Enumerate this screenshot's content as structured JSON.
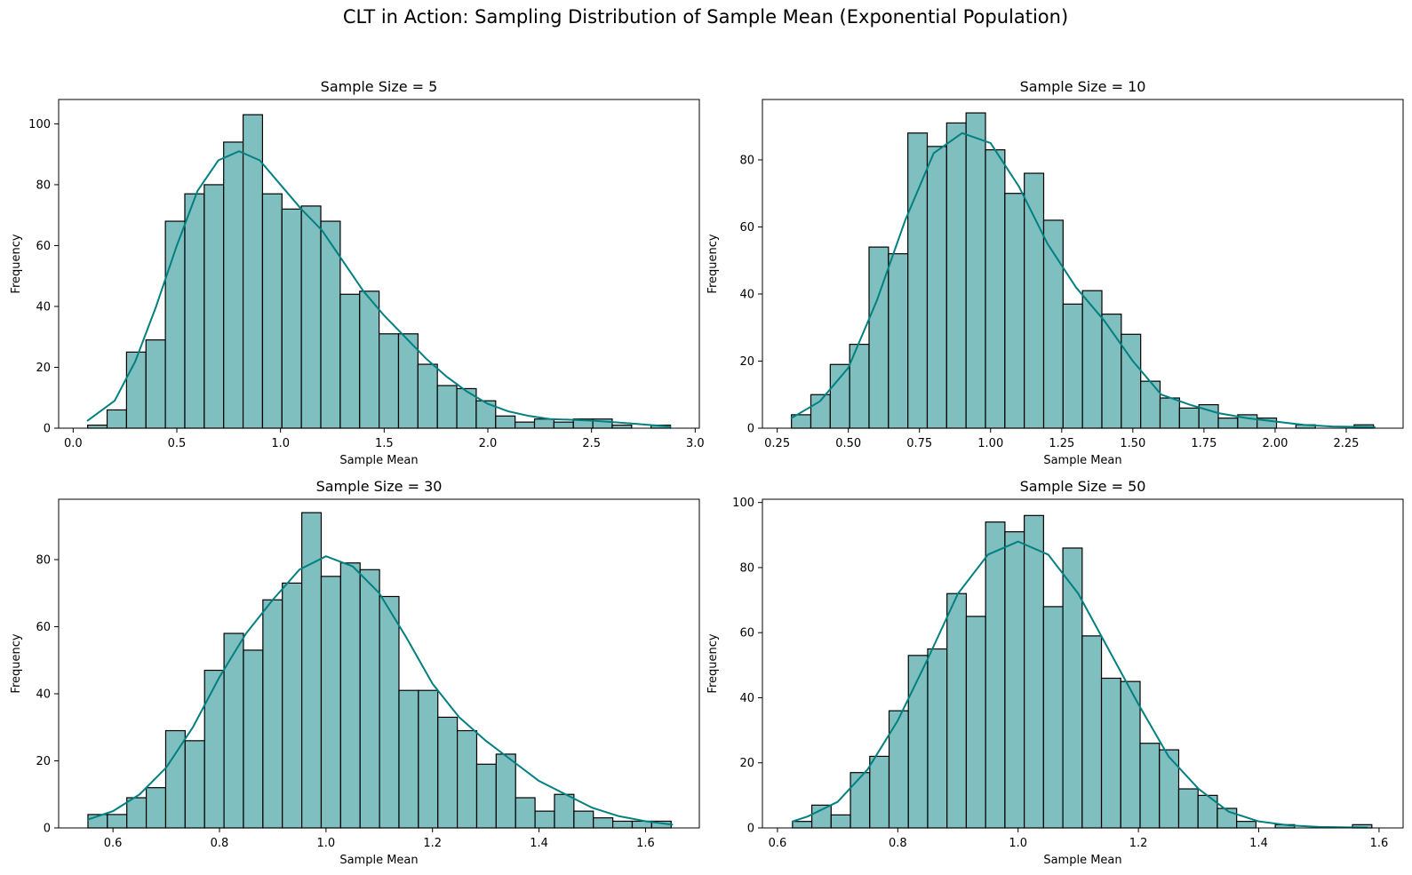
{
  "figure": {
    "suptitle": "CLT in Action: Sampling Distribution of Sample Mean (Exponential Population)"
  },
  "colors": {
    "bar_fill": "#80bfbf",
    "bar_edge": "#000000",
    "kde_line": "#008080"
  },
  "chart_data": [
    {
      "type": "bar",
      "subtype": "histogram_with_kde",
      "title": "Sample Size = 5",
      "xlabel": "Sample Mean",
      "ylabel": "Frequency",
      "xlim": [
        -0.07,
        3.02
      ],
      "ylim": [
        0,
        108
      ],
      "xticks": [
        0.0,
        0.5,
        1.0,
        1.5,
        2.0,
        2.5,
        3.0
      ],
      "xtick_labels": [
        "0.0",
        "0.5",
        "1.0",
        "1.5",
        "2.0",
        "2.5",
        "3.0"
      ],
      "yticks": [
        0,
        20,
        40,
        60,
        80,
        100
      ],
      "ytick_labels": [
        "0",
        "20",
        "40",
        "60",
        "80",
        "100"
      ],
      "bin_start": 0.07,
      "bin_width": 0.0937,
      "values": [
        1,
        6,
        25,
        29,
        68,
        77,
        80,
        94,
        103,
        77,
        72,
        73,
        68,
        44,
        45,
        31,
        31,
        21,
        14,
        13,
        9,
        4,
        2,
        3,
        2,
        3,
        3,
        1,
        0,
        1
      ],
      "kde": {
        "x": [
          0.07,
          0.2,
          0.3,
          0.4,
          0.5,
          0.6,
          0.7,
          0.8,
          0.9,
          1.0,
          1.1,
          1.2,
          1.3,
          1.4,
          1.5,
          1.6,
          1.7,
          1.8,
          1.9,
          2.0,
          2.1,
          2.2,
          2.3,
          2.5,
          2.7,
          2.88
        ],
        "y": [
          2.5,
          9,
          22,
          40,
          60,
          78,
          88,
          91,
          88,
          80,
          72,
          65,
          55,
          45,
          37,
          30,
          23,
          17,
          12,
          8,
          5.5,
          4,
          3,
          2.5,
          1.5,
          0.5
        ]
      }
    },
    {
      "type": "bar",
      "subtype": "histogram_with_kde",
      "title": "Sample Size = 10",
      "xlabel": "Sample Mean",
      "ylabel": "Frequency",
      "xlim": [
        0.198,
        2.45
      ],
      "ylim": [
        0,
        98
      ],
      "xticks": [
        0.25,
        0.5,
        0.75,
        1.0,
        1.25,
        1.5,
        1.75,
        2.0,
        2.25
      ],
      "xtick_labels": [
        "0.25",
        "0.50",
        "0.75",
        "1.00",
        "1.25",
        "1.50",
        "1.75",
        "2.00",
        "2.25"
      ],
      "yticks": [
        0,
        20,
        40,
        60,
        80
      ],
      "ytick_labels": [
        "0",
        "20",
        "40",
        "60",
        "80"
      ],
      "bin_start": 0.3,
      "bin_width": 0.0682,
      "values": [
        4,
        10,
        19,
        25,
        54,
        52,
        88,
        84,
        91,
        94,
        83,
        70,
        76,
        62,
        37,
        41,
        34,
        28,
        14,
        9,
        6,
        7,
        3,
        4,
        3,
        0,
        1,
        0,
        0,
        1
      ],
      "kde": {
        "x": [
          0.3,
          0.4,
          0.5,
          0.6,
          0.7,
          0.8,
          0.9,
          1.0,
          1.1,
          1.2,
          1.3,
          1.4,
          1.5,
          1.6,
          1.7,
          1.8,
          1.9,
          2.0,
          2.1,
          2.2,
          2.35
        ],
        "y": [
          3,
          8,
          18,
          38,
          62,
          82,
          88,
          85,
          72,
          55,
          42,
          32,
          20,
          10,
          7,
          4.5,
          3,
          2,
          1,
          0.5,
          0.3
        ]
      }
    },
    {
      "type": "bar",
      "subtype": "histogram_with_kde",
      "title": "Sample Size = 30",
      "xlabel": "Sample Mean",
      "ylabel": "Frequency",
      "xlim": [
        0.498,
        1.701
      ],
      "ylim": [
        0,
        98
      ],
      "xticks": [
        0.6,
        0.8,
        1.0,
        1.2,
        1.4,
        1.6
      ],
      "xtick_labels": [
        "0.6",
        "0.8",
        "1.0",
        "1.2",
        "1.4",
        "1.6"
      ],
      "yticks": [
        0,
        20,
        40,
        60,
        80
      ],
      "ytick_labels": [
        "0",
        "20",
        "40",
        "60",
        "80"
      ],
      "bin_start": 0.553,
      "bin_width": 0.0365,
      "values": [
        4,
        4,
        9,
        12,
        29,
        26,
        47,
        58,
        53,
        68,
        73,
        94,
        75,
        79,
        77,
        69,
        41,
        41,
        33,
        29,
        19,
        22,
        9,
        5,
        10,
        5,
        3,
        2,
        2,
        2
      ],
      "kde": {
        "x": [
          0.553,
          0.6,
          0.65,
          0.7,
          0.75,
          0.8,
          0.85,
          0.9,
          0.95,
          1.0,
          1.05,
          1.1,
          1.15,
          1.2,
          1.25,
          1.3,
          1.35,
          1.4,
          1.45,
          1.5,
          1.55,
          1.6,
          1.65
        ],
        "y": [
          2.5,
          5,
          10,
          18,
          30,
          45,
          58,
          68,
          77,
          81,
          78,
          70,
          57,
          43,
          33,
          26,
          20,
          14,
          10,
          6,
          3.5,
          2,
          1
        ]
      }
    },
    {
      "type": "bar",
      "subtype": "histogram_with_kde",
      "title": "Sample Size = 50",
      "xlabel": "Sample Mean",
      "ylabel": "Frequency",
      "xlim": [
        0.575,
        1.64
      ],
      "ylim": [
        0,
        101
      ],
      "xticks": [
        0.6,
        0.8,
        1.0,
        1.2,
        1.4,
        1.6
      ],
      "xtick_labels": [
        "0.6",
        "0.8",
        "1.0",
        "1.2",
        "1.4",
        "1.6"
      ],
      "yticks": [
        0,
        20,
        40,
        60,
        80,
        100
      ],
      "ytick_labels": [
        "0",
        "20",
        "40",
        "60",
        "80",
        "100"
      ],
      "bin_start": 0.625,
      "bin_width": 0.0321,
      "values": [
        2,
        7,
        4,
        17,
        22,
        36,
        53,
        55,
        72,
        65,
        94,
        91,
        96,
        68,
        86,
        59,
        46,
        45,
        26,
        24,
        12,
        10,
        6,
        2,
        0,
        1,
        0,
        0,
        0,
        1
      ],
      "kde": {
        "x": [
          0.625,
          0.65,
          0.7,
          0.75,
          0.8,
          0.85,
          0.9,
          0.95,
          1.0,
          1.05,
          1.1,
          1.15,
          1.2,
          1.25,
          1.3,
          1.35,
          1.4,
          1.45,
          1.5,
          1.58
        ],
        "y": [
          2,
          3.5,
          8,
          18,
          33,
          52,
          72,
          84,
          88,
          84,
          72,
          55,
          38,
          22,
          12,
          5,
          2,
          0.8,
          0.3,
          0.1
        ]
      }
    }
  ]
}
